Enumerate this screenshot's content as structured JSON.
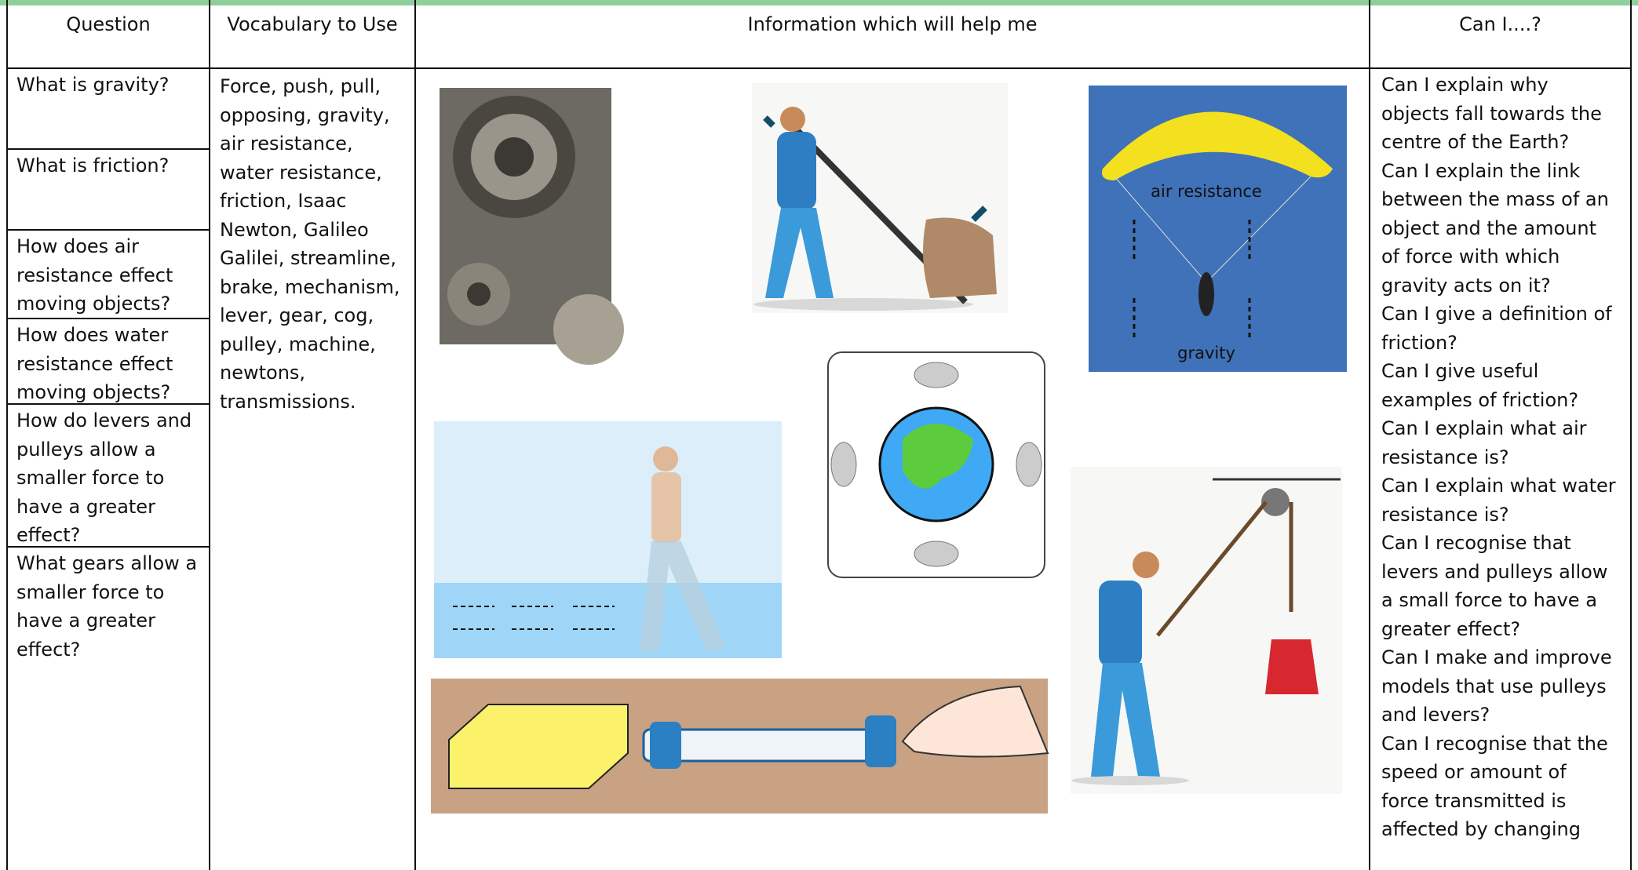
{
  "header": {
    "question": "Question",
    "vocabulary": "Vocabulary to Use",
    "information": "Information which will help me",
    "can_i": "Can I....?"
  },
  "questions": [
    "What is gravity?",
    "What is friction?",
    "How does air resistance effect moving objects?",
    "How does water resistance effect moving objects?",
    "How do levers and pulleys allow a smaller force to have a greater effect?",
    "What gears allow a smaller force to have a greater effect?"
  ],
  "vocabulary": "Force, push, pull, opposing, gravity, air resistance, water resistance, friction, Isaac Newton, Galileo Galilei, streamline, brake, mechanism, lever, gear, cog, pulley, machine, newtons, transmissions.",
  "images": {
    "parachute": {
      "label_top": "air resistance",
      "label_bottom": "gravity"
    }
  },
  "can_i": [
    "Can I explain why objects fall towards the centre of the Earth?",
    "Can I explain the link between the mass of an object and the amount of force with which gravity acts on it?",
    "Can I give a definition of friction?",
    "Can I give useful examples of friction?",
    "Can I explain what air resistance is?",
    "Can I explain what water resistance is?",
    "Can I recognise that levers and pulleys allow a small force to have a greater effect?",
    "Can I make and improve models that use pulleys and levers?",
    "Can I recognise that the speed or amount of force transmitted is affected by changing"
  ]
}
